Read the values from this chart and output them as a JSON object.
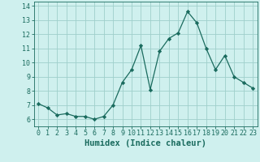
{
  "x": [
    0,
    1,
    2,
    3,
    4,
    5,
    6,
    7,
    8,
    9,
    10,
    11,
    12,
    13,
    14,
    15,
    16,
    17,
    18,
    19,
    20,
    21,
    22,
    23
  ],
  "y": [
    7.1,
    6.8,
    6.3,
    6.4,
    6.2,
    6.2,
    6.0,
    6.2,
    7.0,
    8.6,
    9.5,
    11.2,
    8.1,
    10.8,
    11.7,
    12.1,
    13.6,
    12.8,
    11.0,
    9.5,
    10.5,
    9.0,
    8.6,
    8.2
  ],
  "xlabel": "Humidex (Indice chaleur)",
  "ylim": [
    5.5,
    14.3
  ],
  "xlim": [
    -0.5,
    23.5
  ],
  "yticks": [
    6,
    7,
    8,
    9,
    10,
    11,
    12,
    13,
    14
  ],
  "xticks": [
    0,
    1,
    2,
    3,
    4,
    5,
    6,
    7,
    8,
    9,
    10,
    11,
    12,
    13,
    14,
    15,
    16,
    17,
    18,
    19,
    20,
    21,
    22,
    23
  ],
  "line_color": "#1a6b5e",
  "marker": "D",
  "marker_size": 2.2,
  "bg_color": "#cff0ee",
  "grid_color": "#9fcfcb",
  "tick_color": "#1a6b5e",
  "label_color": "#1a6b5e",
  "font_size": 6.0,
  "xlabel_fontsize": 7.5
}
